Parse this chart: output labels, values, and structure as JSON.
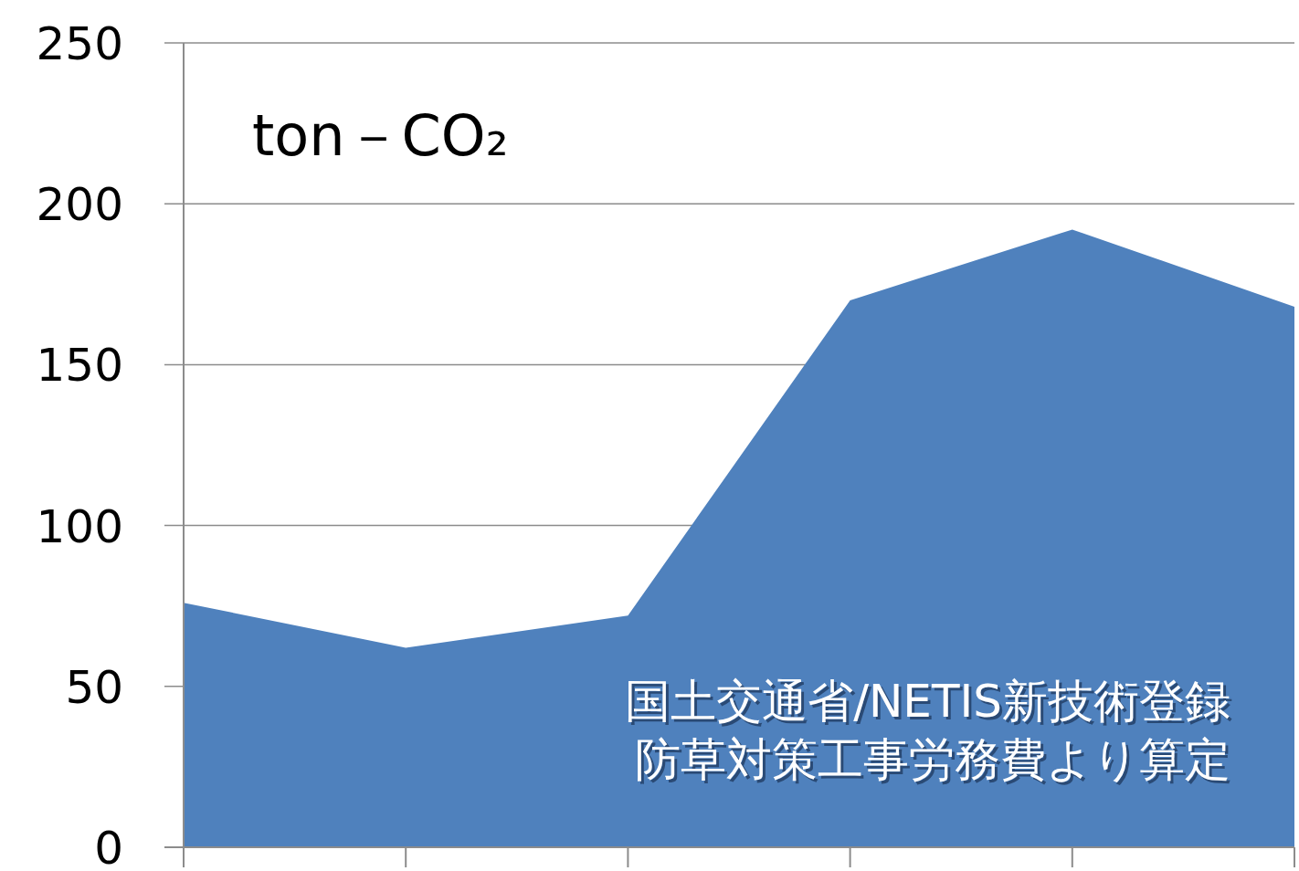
{
  "chart_data": {
    "type": "area",
    "ylabel": "ton－CO₂",
    "categories": [
      null,
      null,
      null,
      null,
      null,
      null
    ],
    "values": [
      76,
      62,
      72,
      170,
      192,
      168
    ],
    "color": "#4f81bd",
    "ylim": [
      0,
      250
    ],
    "yticks": [
      0,
      50,
      100,
      150,
      200,
      250
    ],
    "grid": "y",
    "annotations": [
      "国土交通省/NETIS新技術登録",
      "防草対策工事労務費より算定"
    ]
  }
}
